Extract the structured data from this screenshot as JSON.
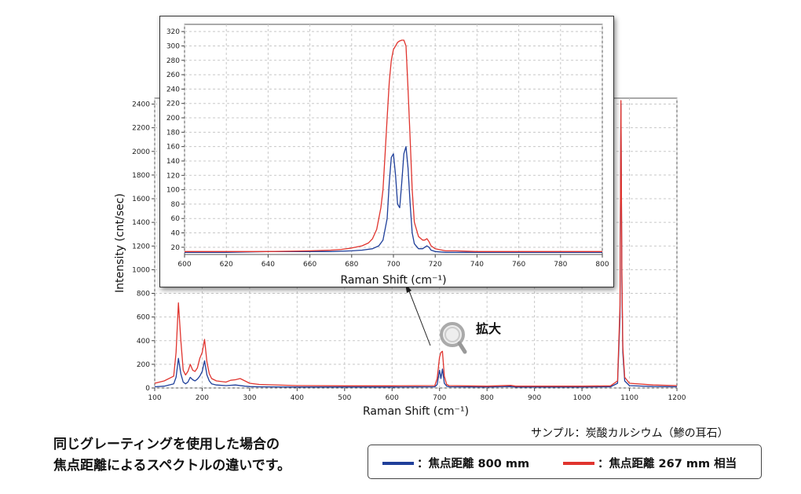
{
  "chart_data": [
    {
      "type": "line",
      "xlabel": "Raman Shift (cm⁻¹)",
      "ylabel": "Intensity (cnt/sec)",
      "xlim": [
        100,
        1200
      ],
      "ylim": [
        0,
        2450
      ],
      "xticks": [
        100,
        200,
        300,
        400,
        500,
        600,
        700,
        800,
        900,
        1000,
        1100,
        1200
      ],
      "yticks": [
        0,
        200,
        400,
        600,
        800,
        1000,
        1200,
        1400,
        1600,
        1800,
        2000,
        2200,
        2400
      ],
      "grid": true,
      "series": [
        {
          "name": "焦点距離 800 mm",
          "color": "#1f3f9a",
          "x": [
            100,
            120,
            140,
            145,
            150,
            155,
            160,
            165,
            170,
            175,
            180,
            185,
            190,
            195,
            200,
            205,
            210,
            215,
            220,
            230,
            250,
            270,
            290,
            300,
            320,
            400,
            500,
            600,
            690,
            695,
            700,
            703,
            706,
            710,
            715,
            720,
            800,
            850,
            860,
            900,
            1000,
            1060,
            1075,
            1080,
            1082,
            1084,
            1086,
            1090,
            1100,
            1150,
            1200
          ],
          "y": [
            10,
            15,
            35,
            90,
            250,
            120,
            50,
            35,
            50,
            90,
            70,
            60,
            75,
            100,
            140,
            230,
            110,
            60,
            35,
            25,
            20,
            25,
            15,
            12,
            10,
            8,
            8,
            8,
            10,
            30,
            150,
            80,
            160,
            40,
            15,
            10,
            8,
            12,
            8,
            8,
            8,
            10,
            40,
            600,
            2400,
            900,
            300,
            60,
            20,
            12,
            10
          ]
        },
        {
          "name": "焦点距離 267mm 相当",
          "color": "#e0342e",
          "x": [
            100,
            120,
            140,
            145,
            150,
            155,
            160,
            165,
            170,
            175,
            180,
            185,
            190,
            195,
            200,
            205,
            210,
            215,
            220,
            230,
            250,
            260,
            270,
            280,
            290,
            300,
            320,
            400,
            500,
            600,
            690,
            695,
            700,
            703,
            706,
            710,
            715,
            720,
            800,
            850,
            860,
            900,
            1000,
            1060,
            1075,
            1080,
            1082,
            1084,
            1086,
            1090,
            1100,
            1150,
            1200
          ],
          "y": [
            40,
            60,
            100,
            300,
            720,
            400,
            150,
            110,
            140,
            200,
            150,
            140,
            170,
            250,
            300,
            410,
            220,
            120,
            80,
            60,
            50,
            65,
            70,
            80,
            60,
            40,
            30,
            20,
            18,
            18,
            20,
            80,
            260,
            300,
            310,
            100,
            30,
            20,
            15,
            22,
            15,
            15,
            15,
            18,
            60,
            700,
            2430,
            1000,
            350,
            90,
            40,
            25,
            20
          ]
        }
      ]
    },
    {
      "type": "line",
      "xlabel": "Raman Shift (cm⁻¹)",
      "xlim": [
        600,
        800
      ],
      "ylim": [
        10,
        330
      ],
      "xticks": [
        600,
        620,
        640,
        660,
        680,
        700,
        720,
        740,
        760,
        780,
        800
      ],
      "yticks": [
        20,
        40,
        60,
        80,
        100,
        120,
        140,
        160,
        180,
        200,
        220,
        240,
        260,
        280,
        300,
        320
      ],
      "grid": true,
      "series": [
        {
          "name": "焦点距離 800 mm",
          "color": "#1f3f9a",
          "x": [
            600,
            620,
            640,
            660,
            670,
            680,
            685,
            690,
            693,
            695,
            697,
            698,
            699,
            700,
            701,
            702,
            703,
            704,
            705,
            706,
            707,
            708,
            709,
            710,
            712,
            714,
            715,
            716,
            717,
            718,
            720,
            725,
            730,
            740,
            760,
            780,
            800
          ],
          "y": [
            13,
            13,
            14,
            14,
            14,
            15,
            16,
            18,
            22,
            30,
            60,
            110,
            145,
            150,
            120,
            80,
            75,
            110,
            150,
            160,
            130,
            80,
            40,
            25,
            18,
            18,
            20,
            22,
            20,
            16,
            14,
            13,
            13,
            13,
            13,
            13,
            13
          ]
        },
        {
          "name": "焦点距離 267mm 相当",
          "color": "#e0342e",
          "x": [
            600,
            620,
            640,
            660,
            670,
            675,
            680,
            685,
            688,
            690,
            692,
            694,
            695,
            696,
            697,
            698,
            699,
            700,
            701,
            702,
            703,
            704,
            705,
            706,
            707,
            708,
            709,
            710,
            712,
            714,
            715,
            716,
            717,
            718,
            720,
            725,
            730,
            740,
            760,
            780,
            800
          ],
          "y": [
            14,
            14,
            14,
            15,
            16,
            17,
            19,
            22,
            26,
            32,
            45,
            75,
            100,
            150,
            200,
            250,
            280,
            295,
            300,
            305,
            307,
            308,
            308,
            300,
            240,
            170,
            100,
            55,
            35,
            30,
            30,
            32,
            28,
            22,
            18,
            15,
            15,
            14,
            14,
            14,
            14
          ]
        }
      ]
    }
  ],
  "annotation": {
    "zoom_label": "拡大"
  },
  "caption": {
    "line1": "同じグレーティングを使用した場合の",
    "line2": "焦点距離によるスペクトルの違いです。"
  },
  "sample_note": "サンプル：炭酸カルシウム（鯵の耳石）",
  "legend": {
    "item1": "：焦点距離 800 mm",
    "item2": "：焦点距離 267 mm 相当"
  },
  "colors": {
    "blue": "#1f3f9a",
    "red": "#e0342e"
  }
}
